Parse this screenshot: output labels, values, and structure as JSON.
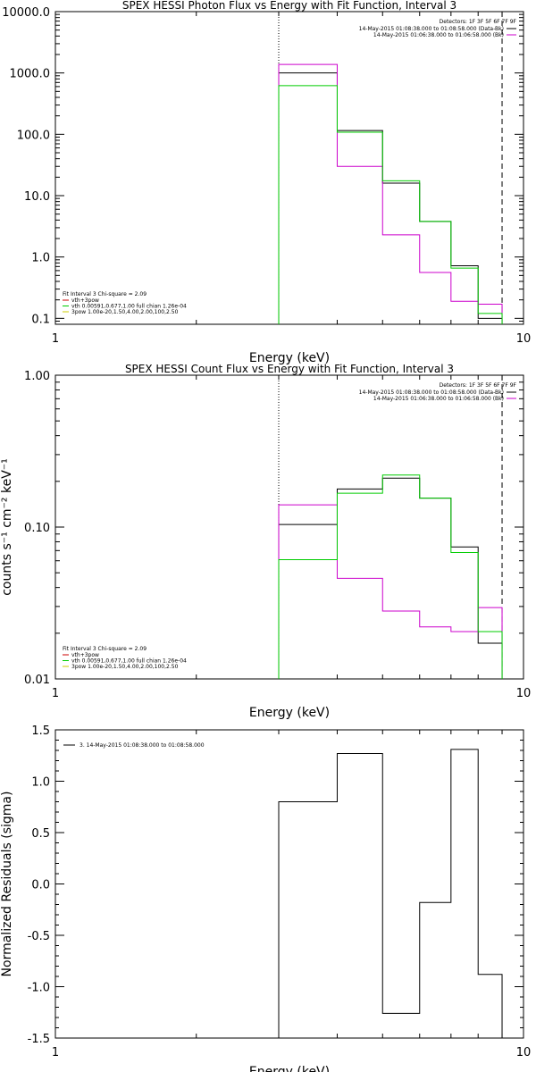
{
  "chart_data": [
    {
      "type": "line",
      "title": "SPEX HESSI Photon Flux vs Energy with Fit Function, Interval 3",
      "xlabel": "Energy (keV)",
      "ylabel": "",
      "xscale": "log",
      "yscale": "log",
      "xlim": [
        1,
        10
      ],
      "ylim": [
        0.08,
        10000
      ],
      "xticks": [
        "1",
        "10"
      ],
      "yticks": [
        "0.1",
        "1.0",
        "10.0",
        "100.0",
        "1000.0",
        "10000.0"
      ],
      "bin_edges": [
        3.0,
        4.0,
        5.0,
        6.0,
        7.0,
        8.0,
        9.0
      ],
      "series": [
        {
          "name": "14-May-2015 01:08:38.000 to 01:08:58.000 (Data-Bk)",
          "color": "#000000",
          "values": [
            1000,
            115,
            16,
            3.8,
            0.72,
            0.1
          ]
        },
        {
          "name": "14-May-2015 01:06:38.000 to 01:06:58.000 (Bk)",
          "color": "#cc00cc",
          "values": [
            1380,
            30,
            2.3,
            0.56,
            0.19,
            0.17
          ]
        },
        {
          "name": "vth 0.00591,0.677,1.00  full chian 1.26e-04",
          "color": "#00cc00",
          "values": [
            620,
            108,
            17.5,
            3.8,
            0.66,
            0.12
          ]
        }
      ],
      "vlines": [
        {
          "x": 3.0,
          "style": "dotted"
        },
        {
          "x": 9.0,
          "style": "dashed"
        }
      ],
      "legend_top": {
        "detectors": "Detectors: 1F 3F 5F 6F 7F 9F",
        "entries": [
          {
            "label": "14-May-2015 01:08:38.000 to 01:08:58.000 (Data-Bk)",
            "color": "#000000"
          },
          {
            "label": "14-May-2015 01:06:38.000 to 01:06:58.000 (Bk)",
            "color": "#cc00cc"
          }
        ]
      },
      "legend_bottom": {
        "header": "Fit Interval 3   Chi-square = 2.09",
        "entries": [
          {
            "label": "vth+3pow",
            "color": "#cc0000"
          },
          {
            "label": "vth 0.00591,0.677,1.00  full chian 1.26e-04",
            "color": "#00cc00"
          },
          {
            "label": "3pow 1.00e-20,1.50,4.00,2.00,100,2.50",
            "color": "#cccc00"
          }
        ]
      }
    },
    {
      "type": "line",
      "title": "SPEX HESSI Count Flux vs Energy with Fit Function, Interval 3",
      "xlabel": "Energy (keV)",
      "ylabel": "counts s⁻¹ cm⁻² keV⁻¹",
      "xscale": "log",
      "yscale": "log",
      "xlim": [
        1,
        10
      ],
      "ylim": [
        0.01,
        1.0
      ],
      "xticks": [
        "1",
        "10"
      ],
      "yticks": [
        "0.01",
        "0.10",
        "1.00"
      ],
      "bin_edges": [
        3.0,
        4.0,
        5.0,
        6.0,
        7.0,
        8.0,
        9.0
      ],
      "series": [
        {
          "name": "14-May-2015 01:08:38.000 to 01:08:58.000 (Data-Bk)",
          "color": "#000000",
          "values": [
            0.104,
            0.178,
            0.21,
            0.155,
            0.074,
            0.0172
          ]
        },
        {
          "name": "14-May-2015 01:06:38.000 to 01:06:58.000 (Bk)",
          "color": "#cc00cc",
          "values": [
            0.14,
            0.046,
            0.028,
            0.022,
            0.0205,
            0.0295
          ]
        },
        {
          "name": "vth 0.00591,0.677,1.00  full chian 1.26e-04",
          "color": "#00cc00",
          "values": [
            0.061,
            0.167,
            0.22,
            0.155,
            0.068,
            0.0205
          ]
        }
      ],
      "vlines": [
        {
          "x": 3.0,
          "style": "dotted"
        },
        {
          "x": 9.0,
          "style": "dashed"
        }
      ],
      "legend_top": {
        "detectors": "Detectors: 1F 3F 5F 6F 7F 9F",
        "entries": [
          {
            "label": "14-May-2015 01:08:38.000 to 01:08:58.000 (Data-Bk)",
            "color": "#000000"
          },
          {
            "label": "14-May-2015 01:06:38.000 to 01:06:58.000 (Bk)",
            "color": "#cc00cc"
          }
        ]
      },
      "legend_bottom": {
        "header": "Fit Interval 3   Chi-square = 2.09",
        "entries": [
          {
            "label": "vth+3pow",
            "color": "#cc0000"
          },
          {
            "label": "vth 0.00591,0.677,1.00  full chian 1.26e-04",
            "color": "#00cc00"
          },
          {
            "label": "3pow 1.00e-20,1.50,4.00,2.00,100,2.50",
            "color": "#cccc00"
          }
        ]
      }
    },
    {
      "type": "line",
      "title": "",
      "xlabel": "Energy (keV)",
      "ylabel": "Normalized Residuals (sigma)",
      "xscale": "log",
      "yscale": "linear",
      "xlim": [
        1,
        10
      ],
      "ylim": [
        -1.5,
        1.5
      ],
      "xticks": [
        "1",
        "10"
      ],
      "yticks": [
        "-1.5",
        "-1.0",
        "-0.5",
        "0.0",
        "0.5",
        "1.0",
        "1.5"
      ],
      "bin_edges": [
        3.0,
        4.0,
        5.0,
        6.0,
        7.0,
        8.0,
        9.0
      ],
      "series": [
        {
          "name": "3. 14-May-2015 01:08:38.000 to 01:08:58.000",
          "color": "#000000",
          "values": [
            0.8,
            1.27,
            -1.26,
            -0.18,
            1.31,
            -0.88
          ]
        }
      ],
      "legend_top": {
        "entries": [
          {
            "label": "3. 14-May-2015 01:08:38.000 to 01:08:58.000",
            "color": "#000000"
          }
        ]
      }
    }
  ]
}
